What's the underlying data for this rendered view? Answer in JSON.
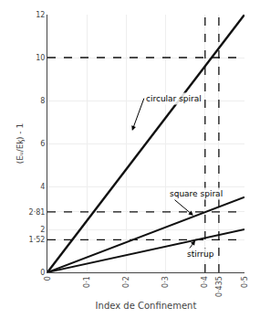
{
  "chart_data": {
    "type": "line",
    "x_label": "Index de Confinement",
    "y_label": "(Eᵤ/Eᶄ) - 1",
    "xlim": [
      0,
      0.5
    ],
    "ylim": [
      0,
      12
    ],
    "xticks": [
      0,
      {
        "value": 0.1,
        "label": "0·1"
      },
      {
        "value": 0.2,
        "label": "0·2"
      },
      {
        "value": 0.3,
        "label": "0·3"
      },
      {
        "value": 0.4,
        "label": "0·4"
      },
      {
        "value": 0.435,
        "label": "0·435"
      },
      {
        "value": 0.5,
        "label": "0·5"
      }
    ],
    "yticks": [
      0,
      {
        "value": 1.52,
        "label": "1·52"
      },
      2,
      {
        "value": 2.81,
        "label": "2·81"
      },
      4,
      6,
      8,
      10,
      12
    ],
    "grid": true,
    "series": [
      {
        "x": [
          0,
          0.5
        ],
        "values": [
          0,
          12.0
        ],
        "color": "#111111"
      },
      {
        "x": [
          0,
          0.5
        ],
        "values": [
          0,
          3.5
        ],
        "color": "#111111"
      },
      {
        "x": [
          0,
          0.5
        ],
        "values": [
          0,
          2.0
        ],
        "color": "#111111"
      }
    ],
    "hlines": [
      10,
      2.81,
      1.52
    ],
    "vlines": [
      0.4,
      0.435
    ],
    "reference_line_style": "dashed",
    "reference_line_color": "#111111",
    "annotations": [
      {
        "text": "circular spiral",
        "x": 0.215,
        "y": 6.6,
        "text_x": 0.245,
        "text_y": 8.1
      },
      {
        "text": "square spiral",
        "x": 0.37,
        "y": 2.65,
        "text_x": 0.305,
        "text_y": 3.65
      },
      {
        "text": "stirrup",
        "x": 0.375,
        "y": 1.48,
        "text_x": 0.35,
        "text_y": 0.85
      }
    ]
  }
}
